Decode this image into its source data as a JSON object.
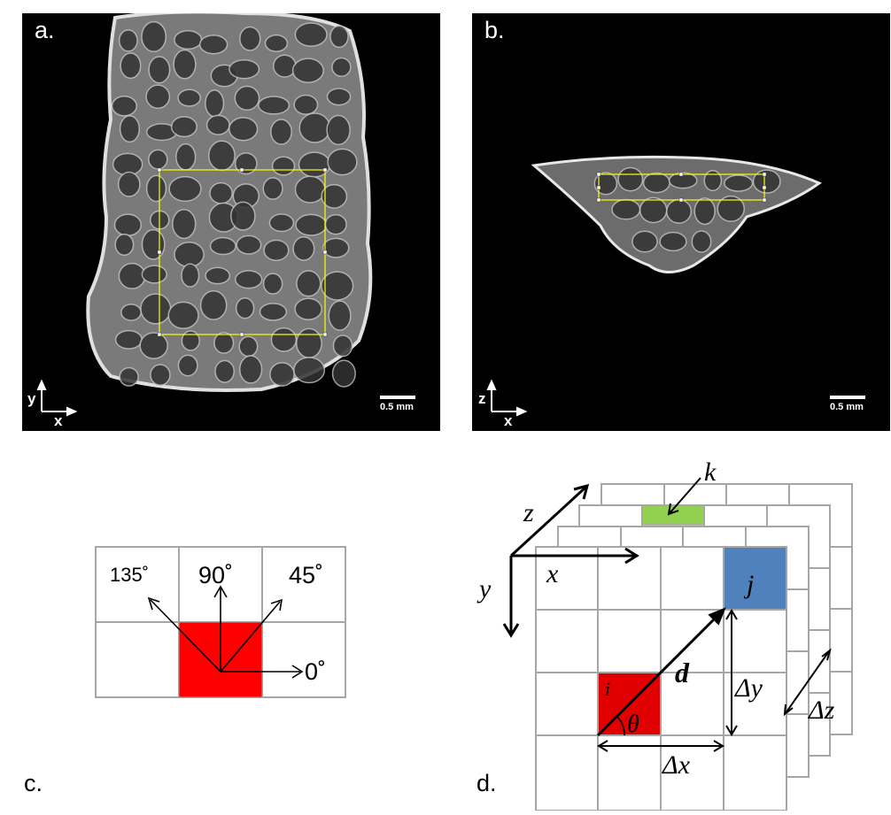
{
  "panel_a": {
    "label": "a.",
    "scale_text": "0.5 mm",
    "axis_vertical": "y",
    "axis_horizontal": "x"
  },
  "panel_b": {
    "label": "b.",
    "scale_text": "0.5 mm",
    "axis_vertical": "z",
    "axis_horizontal": "x"
  },
  "panel_c": {
    "label": "c.",
    "angles": {
      "a0": "0˚",
      "a45": "45˚",
      "a90": "90˚",
      "a135": "135˚"
    },
    "center_color": "#ff0000"
  },
  "panel_d": {
    "label": "d.",
    "axis_x": "x",
    "axis_y": "y",
    "axis_z": "z",
    "cell_i": "i",
    "cell_j": "j",
    "cell_k": "k",
    "vector": "d",
    "angle": "θ",
    "delta_x": "Δx",
    "delta_y": "Δy",
    "delta_z": "Δz",
    "colors": {
      "i": "#e00000",
      "j": "#4f81bd",
      "k": "#92d050",
      "grid": "#a6a6a6"
    }
  },
  "colors": {
    "roi_box": "#ffff00"
  }
}
